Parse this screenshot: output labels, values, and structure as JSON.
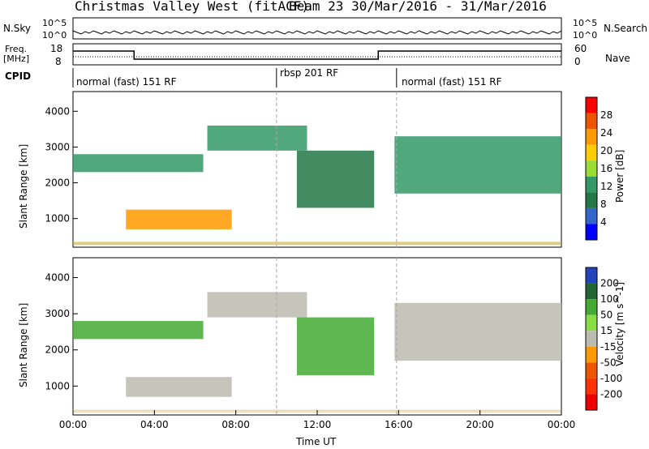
{
  "header": {
    "title_left": "Christmas Valley West (fitACF)",
    "title_right": "Beam 23  30/Mar/2016 - 31/Mar/2016"
  },
  "summary": {
    "nsky_label": "N.Sky",
    "nsearch_label": "N.Search",
    "noise_ticks_left": [
      "10^5",
      "10^0"
    ],
    "noise_ticks_right": [
      "10^5",
      "10^0"
    ],
    "freq_label_1": "Freq.",
    "freq_label_2": "[MHz]",
    "freq_ticks": [
      "18",
      "8"
    ],
    "nave_label": "Nave",
    "nave_ticks": [
      "60",
      "0"
    ],
    "cpid_label": "CPID",
    "cpid_segments": [
      {
        "label": "normal (fast) 151 RF",
        "start_h": 0,
        "end_h": 10
      },
      {
        "label": "rbsp 201 RF",
        "start_h": 10,
        "end_h": 15.9
      },
      {
        "label": "normal (fast) 151 RF",
        "start_h": 15.9,
        "end_h": 24
      }
    ]
  },
  "chart_data": [
    {
      "type": "heatmap",
      "title": "",
      "xlabel": "Time UT",
      "ylabel": "Slant Range [km]",
      "colorbar_label": "Power [dB]",
      "colorbar_ticks": [
        "28",
        "24",
        "20",
        "16",
        "12",
        "8",
        "4"
      ],
      "colorbar_colors": [
        "#ff0000",
        "#ee5500",
        "#ff9900",
        "#ffcc00",
        "#99dd33",
        "#339966",
        "#227744",
        "#3366cc",
        "#0000ff"
      ],
      "x_ticks": [
        "00:00",
        "04:00",
        "08:00",
        "12:00",
        "16:00",
        "20:00",
        "00:00"
      ],
      "y_ticks": [
        "4000",
        "3000",
        "2000",
        "1000"
      ],
      "xlim_hours": [
        0,
        24
      ],
      "ylim_km": [
        200,
        4550
      ],
      "regions": [
        {
          "t": [
            2.6,
            7.8
          ],
          "r": [
            700,
            1250
          ],
          "value_db": 20
        },
        {
          "t": [
            0,
            6.4
          ],
          "r": [
            2300,
            2800
          ],
          "value_db": 10
        },
        {
          "t": [
            6.6,
            11.5
          ],
          "r": [
            2900,
            3600
          ],
          "value_db": 12
        },
        {
          "t": [
            11.0,
            14.8
          ],
          "r": [
            1300,
            2900
          ],
          "value_db": 8
        },
        {
          "t": [
            15.8,
            24
          ],
          "r": [
            1700,
            3300
          ],
          "value_db": 12
        }
      ]
    },
    {
      "type": "heatmap",
      "title": "",
      "xlabel": "Time UT",
      "ylabel": "Slant Range [km]",
      "colorbar_label": "Velocity [m s^-1]",
      "colorbar_ticks": [
        "200",
        "100",
        "50",
        "15",
        "-15",
        "-50",
        "-100",
        "-200"
      ],
      "colorbar_colors": [
        "#2244bb",
        "#226633",
        "#44aa33",
        "#88dd44",
        "#bbbbb0",
        "#ff9900",
        "#ee5500",
        "#ff3300",
        "#ee0000"
      ],
      "x_ticks": [
        "00:00",
        "04:00",
        "08:00",
        "12:00",
        "16:00",
        "20:00",
        "00:00"
      ],
      "y_ticks": [
        "4000",
        "3000",
        "2000",
        "1000"
      ],
      "xlim_hours": [
        0,
        24
      ],
      "ylim_km": [
        200,
        4550
      ],
      "regions": [
        {
          "t": [
            2.6,
            7.8
          ],
          "r": [
            700,
            1250
          ],
          "value_ms": 0
        },
        {
          "t": [
            0,
            6.4
          ],
          "r": [
            2300,
            2800
          ],
          "value_ms": 20
        },
        {
          "t": [
            6.6,
            11.5
          ],
          "r": [
            2900,
            3600
          ],
          "value_ms": 0
        },
        {
          "t": [
            11.0,
            14.8
          ],
          "r": [
            1300,
            2900
          ],
          "value_ms": 30
        },
        {
          "t": [
            15.8,
            24
          ],
          "r": [
            1700,
            3300
          ],
          "value_ms": 0
        }
      ]
    }
  ]
}
